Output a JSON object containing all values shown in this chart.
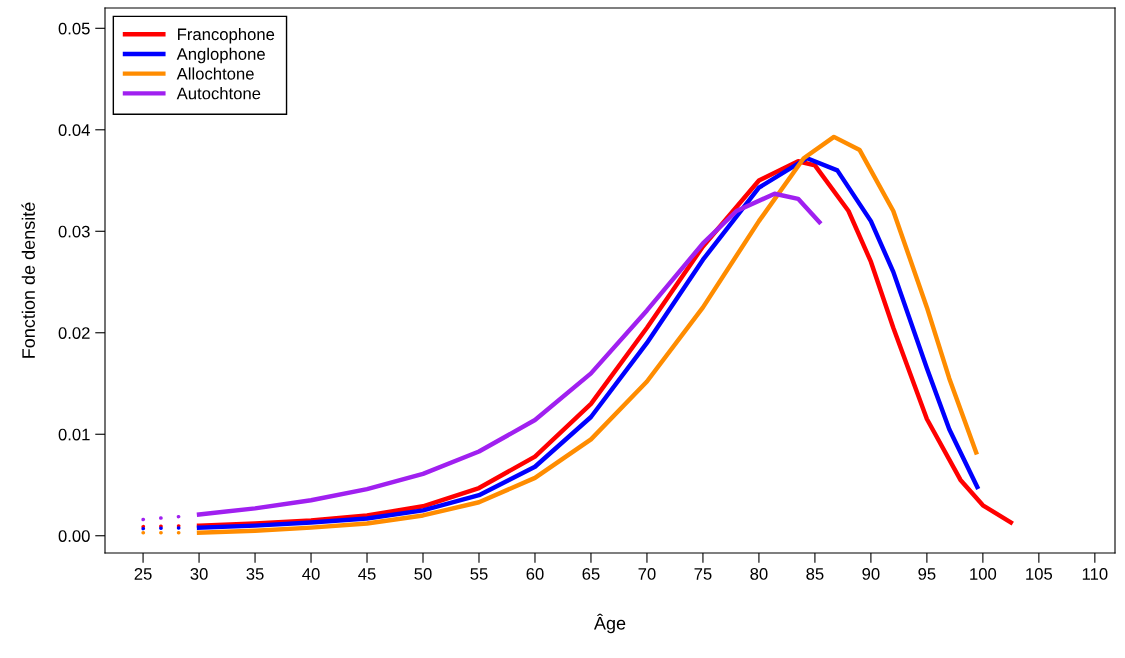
{
  "chart_data": {
    "type": "line",
    "xlabel": "Âge",
    "ylabel": "Fonction de densité",
    "legend": "top left",
    "grid": false,
    "marker": "none",
    "line_style": "solid",
    "xlim": [
      21.6,
      111.8
    ],
    "ylim": [
      -0.0017,
      0.052
    ],
    "xticks": [
      25,
      30,
      35,
      40,
      45,
      50,
      55,
      60,
      65,
      70,
      75,
      80,
      85,
      90,
      95,
      100,
      105,
      110
    ],
    "yticks": [
      {
        "value": 0,
        "label": "0.00"
      },
      {
        "value": 0.01,
        "label": "0.01"
      },
      {
        "value": 0.02,
        "label": "0.02"
      },
      {
        "value": 0.03,
        "label": "0.03"
      },
      {
        "value": 0.04,
        "label": "0.04"
      },
      {
        "value": 0.05,
        "label": "0.05"
      }
    ],
    "series": [
      {
        "name": "Francophone",
        "color": "#ff0000",
        "x": [
          30,
          35,
          40,
          45,
          50,
          55,
          60,
          65,
          70,
          75,
          80,
          83.5,
          85,
          88,
          90,
          92,
          95,
          98,
          100,
          102.5
        ],
        "values": [
          0.001,
          0.0012,
          0.0015,
          0.002,
          0.0029,
          0.0047,
          0.0078,
          0.013,
          0.0205,
          0.0285,
          0.035,
          0.0369,
          0.0365,
          0.032,
          0.027,
          0.0205,
          0.0115,
          0.0055,
          0.003,
          0.0013
        ]
      },
      {
        "name": "Anglophone",
        "color": "#0000ff",
        "x": [
          30,
          35,
          40,
          45,
          50,
          55,
          60,
          65,
          70,
          75,
          80,
          84.3,
          87,
          90,
          92,
          95,
          97,
          99.5
        ],
        "values": [
          0.0008,
          0.001,
          0.0013,
          0.0017,
          0.0025,
          0.004,
          0.0068,
          0.0117,
          0.019,
          0.0272,
          0.0343,
          0.0372,
          0.036,
          0.031,
          0.026,
          0.0165,
          0.0105,
          0.0048
        ]
      },
      {
        "name": "Allochtone",
        "color": "#ff8c00",
        "x": [
          30,
          35,
          40,
          45,
          50,
          55,
          60,
          65,
          70,
          75,
          80,
          84,
          86.7,
          89,
          92,
          95,
          97,
          99.4
        ],
        "values": [
          0.0003,
          0.0005,
          0.0008,
          0.0012,
          0.002,
          0.0033,
          0.0057,
          0.0095,
          0.0152,
          0.0225,
          0.031,
          0.0372,
          0.0393,
          0.038,
          0.032,
          0.0225,
          0.0155,
          0.0082
        ]
      },
      {
        "name": "Autochtone",
        "color": "#a020f0",
        "x": [
          30,
          35,
          40,
          45,
          50,
          55,
          60,
          65,
          70,
          75,
          78,
          81.4,
          83.5,
          85.4
        ],
        "values": [
          0.0021,
          0.0027,
          0.0035,
          0.0046,
          0.0061,
          0.0083,
          0.0114,
          0.016,
          0.0222,
          0.0288,
          0.032,
          0.0337,
          0.0332,
          0.0309
        ]
      },
      {
        "color": "#ff0000",
        "line_style": "dotted",
        "x": [
          25,
          29.5
        ],
        "values": [
          0.0009,
          0.001
        ]
      },
      {
        "color": "#0000ff",
        "line_style": "dotted",
        "x": [
          25,
          29.5
        ],
        "values": [
          0.0007,
          0.0008
        ]
      },
      {
        "color": "#ff8c00",
        "line_style": "dotted",
        "x": [
          25,
          29.5
        ],
        "values": [
          0.0003,
          0.0003
        ]
      },
      {
        "color": "#a020f0",
        "line_style": "dotted",
        "x": [
          25,
          29.5
        ],
        "values": [
          0.0016,
          0.002
        ]
      }
    ]
  }
}
